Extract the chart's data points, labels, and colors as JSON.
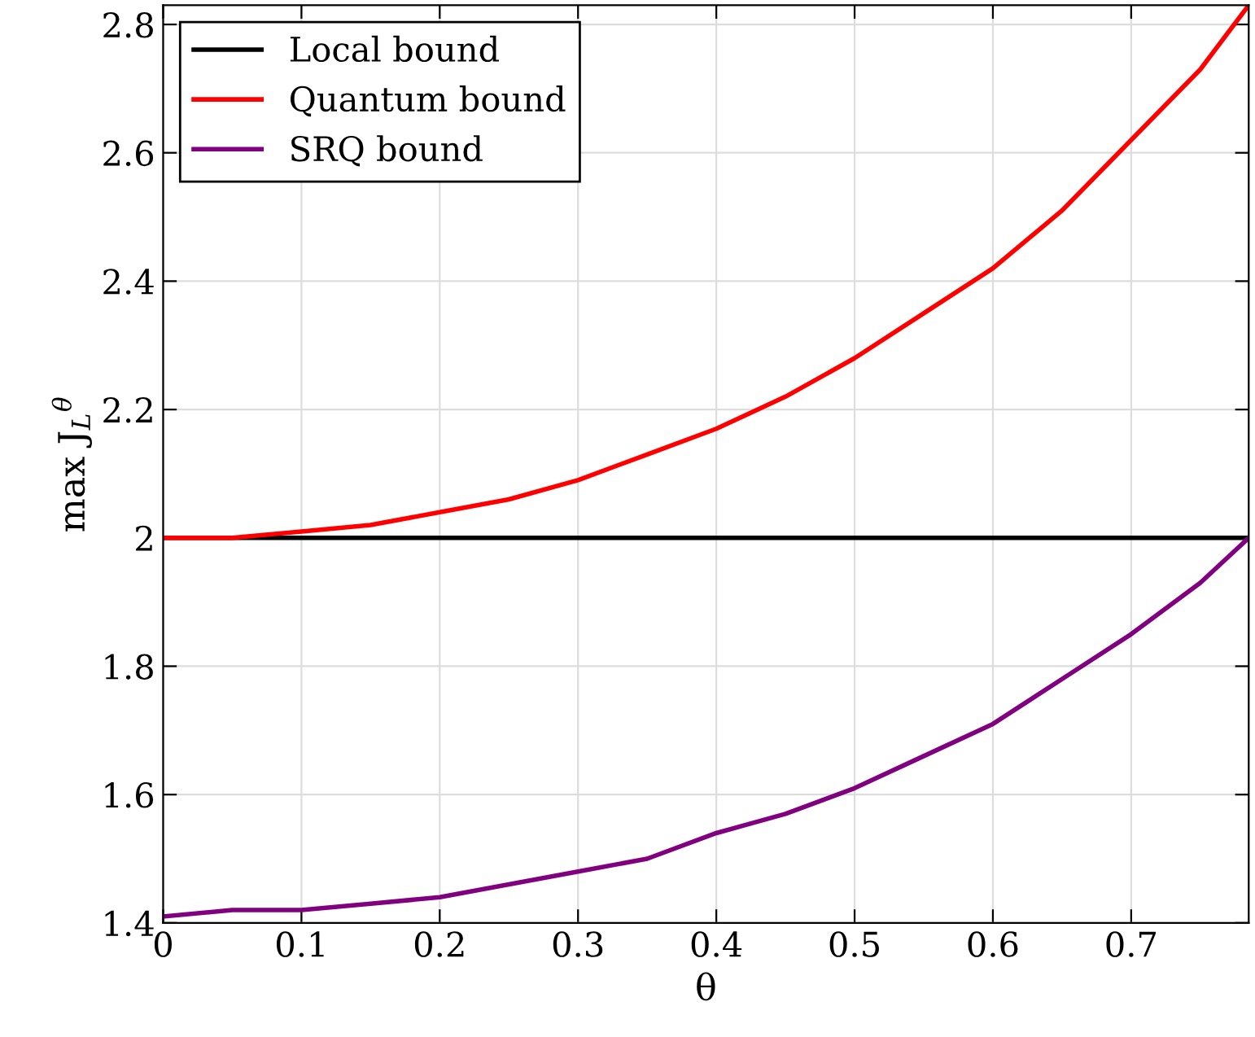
{
  "chart_data": {
    "type": "line",
    "xlabel": "θ",
    "ylabel": "max J$_{L}$$^{θ}$",
    "x": [
      0,
      0.05,
      0.1,
      0.15,
      0.2,
      0.25,
      0.3,
      0.35,
      0.4,
      0.45,
      0.5,
      0.55,
      0.6,
      0.65,
      0.7,
      0.75,
      0.785
    ],
    "series": [
      {
        "name": "Local bound",
        "color": "#000000",
        "values": [
          2,
          2,
          2,
          2,
          2,
          2,
          2,
          2,
          2,
          2,
          2,
          2,
          2,
          2,
          2,
          2,
          2
        ]
      },
      {
        "name": "Quantum bound",
        "color": "#ff0000",
        "values": [
          2.0,
          2.0,
          2.01,
          2.02,
          2.04,
          2.06,
          2.09,
          2.13,
          2.17,
          2.22,
          2.28,
          2.35,
          2.42,
          2.51,
          2.62,
          2.73,
          2.83
        ]
      },
      {
        "name": "SRQ bound",
        "color": "#800080",
        "values": [
          1.41,
          1.42,
          1.42,
          1.43,
          1.44,
          1.46,
          1.48,
          1.5,
          1.54,
          1.57,
          1.61,
          1.66,
          1.71,
          1.78,
          1.85,
          1.93,
          2.0
        ]
      }
    ],
    "xlim": [
      0,
      0.785
    ],
    "ylim": [
      1.4,
      2.83
    ],
    "xticks": [
      0,
      0.1,
      0.2,
      0.3,
      0.4,
      0.5,
      0.6,
      0.7
    ],
    "yticks": [
      1.4,
      1.6,
      1.8,
      2,
      2.2,
      2.4,
      2.6,
      2.8
    ],
    "grid": true,
    "legend": "top left",
    "marker": "none",
    "line_style": "solid"
  }
}
